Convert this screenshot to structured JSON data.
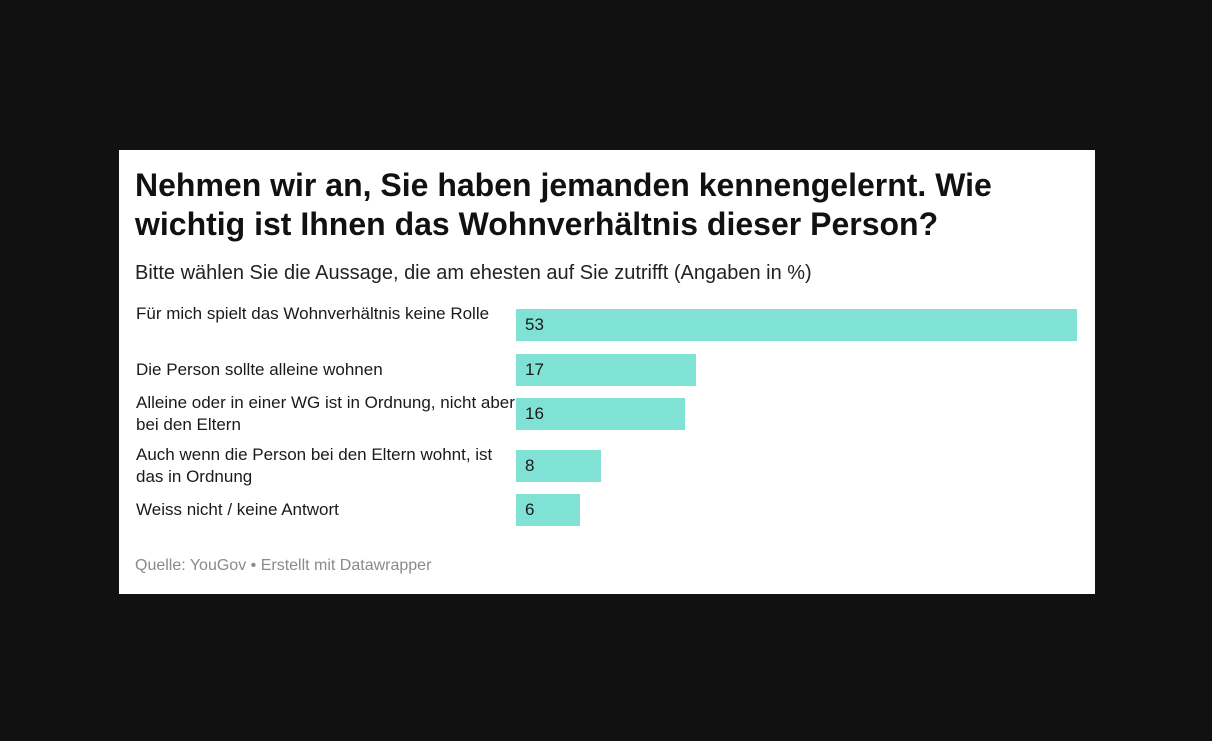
{
  "chart_data": {
    "type": "bar",
    "orientation": "horizontal",
    "title": "Nehmen wir an, Sie haben jemanden kennengelernt. Wie wichtig ist Ihnen das Wohnverhältnis dieser Person?",
    "subtitle": "Bitte wählen Sie die Aussage, die am ehesten auf Sie zutrifft (Angaben in %)",
    "categories": [
      "Für mich spielt das Wohnverhältnis keine Rolle",
      "Die Person sollte alleine wohnen",
      "Alleine oder in einer WG ist in Ordnung, nicht aber bei den Eltern",
      "Auch wenn die Person bei den Eltern wohnt, ist das in Ordnung",
      "Weiss nicht / keine Antwort"
    ],
    "values": [
      53,
      17,
      16,
      8,
      6
    ],
    "bar_color": "#7fe2d4",
    "source": "Quelle: YouGov • Erstellt mit Datawrapper"
  }
}
